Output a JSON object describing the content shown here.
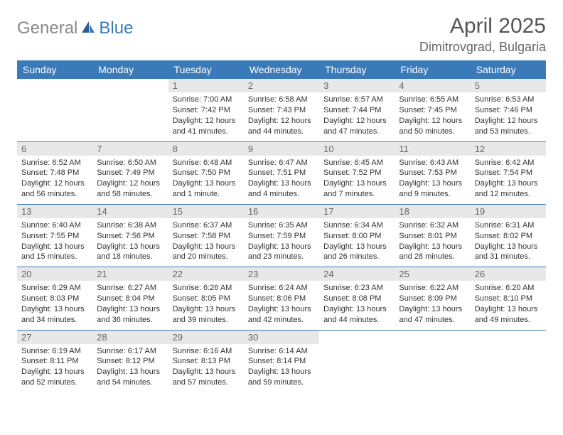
{
  "logo": {
    "part1": "General",
    "part2": "Blue"
  },
  "title": "April 2025",
  "location": "Dimitrovgrad, Bulgaria",
  "colors": {
    "header_bg": "#3a7ab8",
    "header_text": "#ffffff",
    "daynum_bg": "#e8e8e8",
    "daynum_text": "#666666",
    "border": "#3a7ab8",
    "body_text": "#333333",
    "page_bg": "#ffffff"
  },
  "calendar": {
    "type": "table",
    "columns": [
      "Sunday",
      "Monday",
      "Tuesday",
      "Wednesday",
      "Thursday",
      "Friday",
      "Saturday"
    ],
    "weeks": [
      [
        {
          "empty": true
        },
        {
          "empty": true
        },
        {
          "day": "1",
          "sunrise": "Sunrise: 7:00 AM",
          "sunset": "Sunset: 7:42 PM",
          "daylight": "Daylight: 12 hours and 41 minutes."
        },
        {
          "day": "2",
          "sunrise": "Sunrise: 6:58 AM",
          "sunset": "Sunset: 7:43 PM",
          "daylight": "Daylight: 12 hours and 44 minutes."
        },
        {
          "day": "3",
          "sunrise": "Sunrise: 6:57 AM",
          "sunset": "Sunset: 7:44 PM",
          "daylight": "Daylight: 12 hours and 47 minutes."
        },
        {
          "day": "4",
          "sunrise": "Sunrise: 6:55 AM",
          "sunset": "Sunset: 7:45 PM",
          "daylight": "Daylight: 12 hours and 50 minutes."
        },
        {
          "day": "5",
          "sunrise": "Sunrise: 6:53 AM",
          "sunset": "Sunset: 7:46 PM",
          "daylight": "Daylight: 12 hours and 53 minutes."
        }
      ],
      [
        {
          "day": "6",
          "sunrise": "Sunrise: 6:52 AM",
          "sunset": "Sunset: 7:48 PM",
          "daylight": "Daylight: 12 hours and 56 minutes."
        },
        {
          "day": "7",
          "sunrise": "Sunrise: 6:50 AM",
          "sunset": "Sunset: 7:49 PM",
          "daylight": "Daylight: 12 hours and 58 minutes."
        },
        {
          "day": "8",
          "sunrise": "Sunrise: 6:48 AM",
          "sunset": "Sunset: 7:50 PM",
          "daylight": "Daylight: 13 hours and 1 minute."
        },
        {
          "day": "9",
          "sunrise": "Sunrise: 6:47 AM",
          "sunset": "Sunset: 7:51 PM",
          "daylight": "Daylight: 13 hours and 4 minutes."
        },
        {
          "day": "10",
          "sunrise": "Sunrise: 6:45 AM",
          "sunset": "Sunset: 7:52 PM",
          "daylight": "Daylight: 13 hours and 7 minutes."
        },
        {
          "day": "11",
          "sunrise": "Sunrise: 6:43 AM",
          "sunset": "Sunset: 7:53 PM",
          "daylight": "Daylight: 13 hours and 9 minutes."
        },
        {
          "day": "12",
          "sunrise": "Sunrise: 6:42 AM",
          "sunset": "Sunset: 7:54 PM",
          "daylight": "Daylight: 13 hours and 12 minutes."
        }
      ],
      [
        {
          "day": "13",
          "sunrise": "Sunrise: 6:40 AM",
          "sunset": "Sunset: 7:55 PM",
          "daylight": "Daylight: 13 hours and 15 minutes."
        },
        {
          "day": "14",
          "sunrise": "Sunrise: 6:38 AM",
          "sunset": "Sunset: 7:56 PM",
          "daylight": "Daylight: 13 hours and 18 minutes."
        },
        {
          "day": "15",
          "sunrise": "Sunrise: 6:37 AM",
          "sunset": "Sunset: 7:58 PM",
          "daylight": "Daylight: 13 hours and 20 minutes."
        },
        {
          "day": "16",
          "sunrise": "Sunrise: 6:35 AM",
          "sunset": "Sunset: 7:59 PM",
          "daylight": "Daylight: 13 hours and 23 minutes."
        },
        {
          "day": "17",
          "sunrise": "Sunrise: 6:34 AM",
          "sunset": "Sunset: 8:00 PM",
          "daylight": "Daylight: 13 hours and 26 minutes."
        },
        {
          "day": "18",
          "sunrise": "Sunrise: 6:32 AM",
          "sunset": "Sunset: 8:01 PM",
          "daylight": "Daylight: 13 hours and 28 minutes."
        },
        {
          "day": "19",
          "sunrise": "Sunrise: 6:31 AM",
          "sunset": "Sunset: 8:02 PM",
          "daylight": "Daylight: 13 hours and 31 minutes."
        }
      ],
      [
        {
          "day": "20",
          "sunrise": "Sunrise: 6:29 AM",
          "sunset": "Sunset: 8:03 PM",
          "daylight": "Daylight: 13 hours and 34 minutes."
        },
        {
          "day": "21",
          "sunrise": "Sunrise: 6:27 AM",
          "sunset": "Sunset: 8:04 PM",
          "daylight": "Daylight: 13 hours and 36 minutes."
        },
        {
          "day": "22",
          "sunrise": "Sunrise: 6:26 AM",
          "sunset": "Sunset: 8:05 PM",
          "daylight": "Daylight: 13 hours and 39 minutes."
        },
        {
          "day": "23",
          "sunrise": "Sunrise: 6:24 AM",
          "sunset": "Sunset: 8:06 PM",
          "daylight": "Daylight: 13 hours and 42 minutes."
        },
        {
          "day": "24",
          "sunrise": "Sunrise: 6:23 AM",
          "sunset": "Sunset: 8:08 PM",
          "daylight": "Daylight: 13 hours and 44 minutes."
        },
        {
          "day": "25",
          "sunrise": "Sunrise: 6:22 AM",
          "sunset": "Sunset: 8:09 PM",
          "daylight": "Daylight: 13 hours and 47 minutes."
        },
        {
          "day": "26",
          "sunrise": "Sunrise: 6:20 AM",
          "sunset": "Sunset: 8:10 PM",
          "daylight": "Daylight: 13 hours and 49 minutes."
        }
      ],
      [
        {
          "day": "27",
          "sunrise": "Sunrise: 6:19 AM",
          "sunset": "Sunset: 8:11 PM",
          "daylight": "Daylight: 13 hours and 52 minutes."
        },
        {
          "day": "28",
          "sunrise": "Sunrise: 6:17 AM",
          "sunset": "Sunset: 8:12 PM",
          "daylight": "Daylight: 13 hours and 54 minutes."
        },
        {
          "day": "29",
          "sunrise": "Sunrise: 6:16 AM",
          "sunset": "Sunset: 8:13 PM",
          "daylight": "Daylight: 13 hours and 57 minutes."
        },
        {
          "day": "30",
          "sunrise": "Sunrise: 6:14 AM",
          "sunset": "Sunset: 8:14 PM",
          "daylight": "Daylight: 13 hours and 59 minutes."
        },
        {
          "empty": true
        },
        {
          "empty": true
        },
        {
          "empty": true
        }
      ]
    ]
  }
}
